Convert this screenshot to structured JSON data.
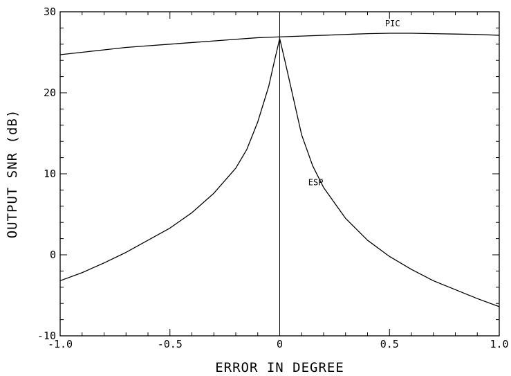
{
  "chart_data": {
    "type": "line",
    "title": "",
    "xlabel": "ERROR IN DEGREE",
    "ylabel": "OUTPUT SNR (dB)",
    "xlim": [
      -1.0,
      1.0
    ],
    "ylim": [
      -10,
      30
    ],
    "x_ticks": [
      -1.0,
      -0.5,
      0,
      0.5,
      1.0
    ],
    "x_tick_labels": [
      "-1.0",
      "-0.5",
      "0",
      "0.5",
      "1.0"
    ],
    "y_ticks": [
      -10,
      0,
      10,
      20,
      30
    ],
    "y_tick_labels": [
      "-10",
      "0",
      "10",
      "20",
      "30"
    ],
    "grid": false,
    "legend": "none",
    "series": [
      {
        "name": "PIC",
        "label_at": [
          0.48,
          28.2
        ],
        "x": [
          -1.0,
          -0.9,
          -0.8,
          -0.7,
          -0.6,
          -0.5,
          -0.4,
          -0.3,
          -0.2,
          -0.1,
          0.0,
          0.1,
          0.2,
          0.3,
          0.4,
          0.5,
          0.6,
          0.7,
          0.8,
          0.9,
          1.0
        ],
        "y": [
          24.7,
          25.0,
          25.3,
          25.6,
          25.8,
          26.0,
          26.2,
          26.4,
          26.6,
          26.8,
          26.9,
          27.0,
          27.1,
          27.2,
          27.3,
          27.35,
          27.35,
          27.3,
          27.25,
          27.2,
          27.1
        ]
      },
      {
        "name": "ESP",
        "label_at": [
          0.13,
          8.6
        ],
        "x": [
          -1.0,
          -0.9,
          -0.8,
          -0.7,
          -0.6,
          -0.5,
          -0.4,
          -0.3,
          -0.2,
          -0.15,
          -0.1,
          -0.05,
          -0.025,
          0.0,
          0.025,
          0.05,
          0.1,
          0.15,
          0.2,
          0.3,
          0.4,
          0.5,
          0.6,
          0.7,
          0.8,
          0.9,
          1.0
        ],
        "y": [
          -3.2,
          -2.2,
          -1.0,
          0.3,
          1.8,
          3.3,
          5.2,
          7.6,
          10.7,
          13.0,
          16.4,
          20.8,
          23.8,
          26.7,
          23.8,
          20.8,
          14.8,
          11.0,
          8.3,
          4.5,
          1.8,
          -0.2,
          -1.8,
          -3.2,
          -4.3,
          -5.4,
          -6.4
        ]
      }
    ]
  }
}
